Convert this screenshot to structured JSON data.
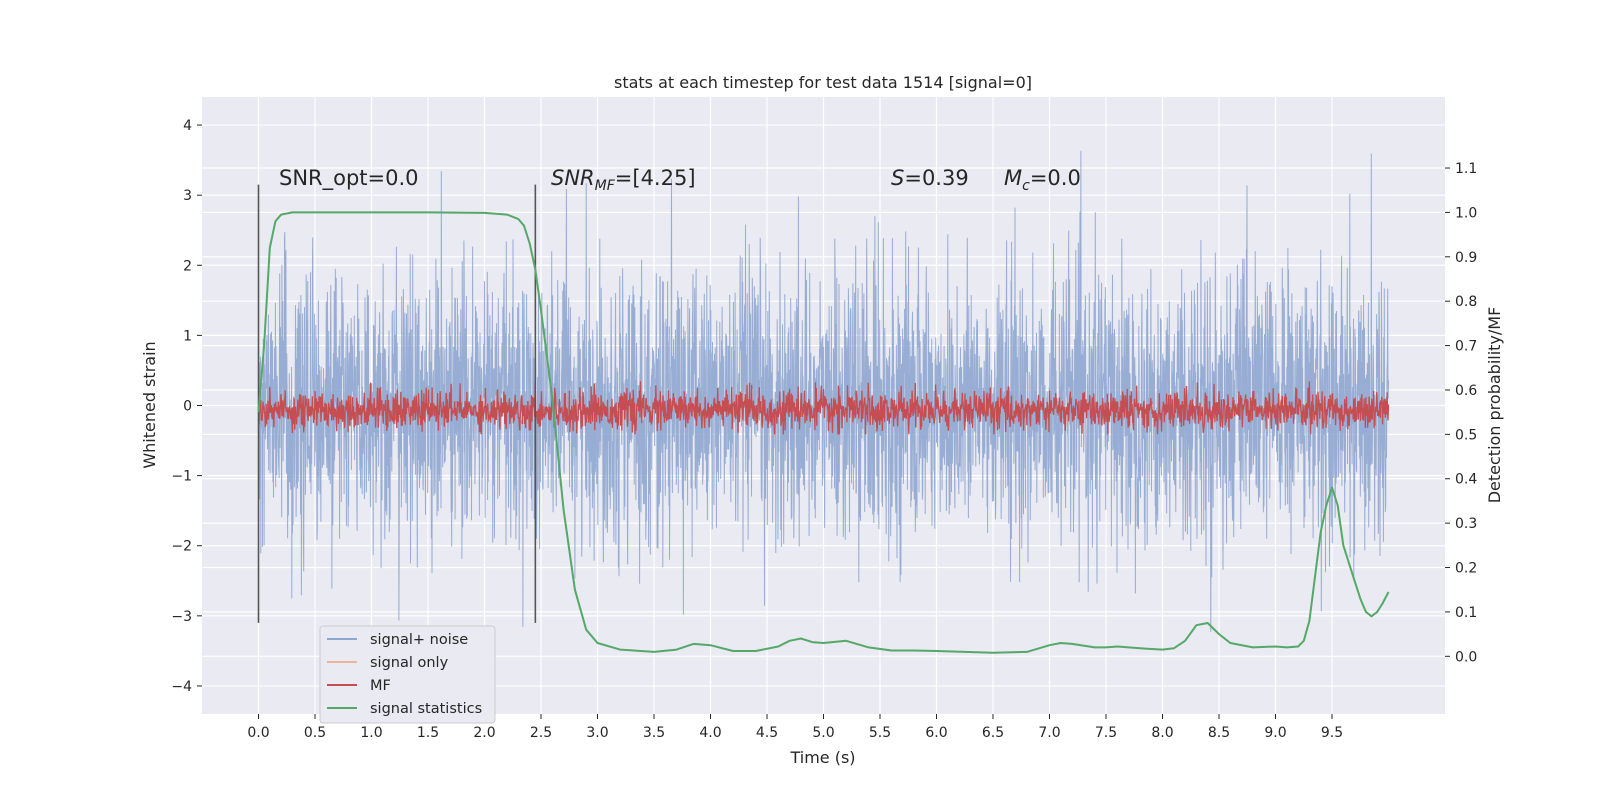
{
  "chart_data": {
    "type": "line",
    "title": "stats at each timestep for test data 1514 [signal=0]",
    "xlabel": "Time (s)",
    "ylabel_left": "Whitened strain",
    "ylabel_right": "Detection probability/MF",
    "xlim": [
      -0.5,
      10.5
    ],
    "ylim_left": [
      -4.4,
      4.4
    ],
    "ylim_right": [
      -0.13,
      1.26
    ],
    "x_ticks": [
      "0.0",
      "0.5",
      "1.0",
      "1.5",
      "2.0",
      "2.5",
      "3.0",
      "3.5",
      "4.0",
      "4.5",
      "5.0",
      "5.5",
      "6.0",
      "6.5",
      "7.0",
      "7.5",
      "8.0",
      "8.5",
      "9.0",
      "9.5"
    ],
    "y_left_ticks": [
      "4",
      "3",
      "2",
      "1",
      "0",
      "−1",
      "−2",
      "−3",
      "−4"
    ],
    "y_right_ticks": [
      "1.1",
      "1.0",
      "0.9",
      "0.8",
      "0.7",
      "0.6",
      "0.5",
      "0.4",
      "0.3",
      "0.2",
      "0.1",
      "0.0"
    ],
    "grid": true,
    "legend_position": "bottom-left",
    "annotations": {
      "snr_opt": "SNR_opt=0.0",
      "snr_mf_main": "SNR",
      "snr_mf_sub": "MF",
      "snr_mf_rest": "=[4.25]",
      "s_main": "S",
      "s_rest": "=0.39",
      "mc_main": "M",
      "mc_sub": "c",
      "mc_rest": "=0.0"
    },
    "vlines_x": [
      0.0,
      2.45
    ],
    "series": [
      {
        "name": "signal+ noise",
        "color": "#8fa6d0",
        "axis": "left",
        "description": "noise trace roughly within -3.5 to 4, duration 0 to 10 s"
      },
      {
        "name": "signal only",
        "color": "#eab49d",
        "axis": "left"
      },
      {
        "name": "MF",
        "color": "#c44e52",
        "axis": "right",
        "description": "matched filter between ~0.5 and ~0.62"
      },
      {
        "name": "signal statistics",
        "color": "#55a868",
        "axis": "right",
        "x": [
          0.0,
          0.05,
          0.1,
          0.15,
          0.2,
          0.3,
          0.5,
          1.0,
          1.5,
          2.0,
          2.2,
          2.3,
          2.35,
          2.4,
          2.45,
          2.5,
          2.55,
          2.6,
          2.7,
          2.8,
          2.9,
          3.0,
          3.2,
          3.5,
          3.7,
          3.85,
          4.0,
          4.2,
          4.4,
          4.6,
          4.7,
          4.8,
          4.9,
          5.0,
          5.2,
          5.4,
          5.6,
          5.8,
          6.0,
          6.5,
          6.8,
          7.0,
          7.1,
          7.2,
          7.4,
          7.5,
          7.6,
          7.8,
          8.0,
          8.1,
          8.2,
          8.3,
          8.4,
          8.5,
          8.6,
          8.8,
          9.0,
          9.1,
          9.2,
          9.25,
          9.3,
          9.4,
          9.45,
          9.5,
          9.55,
          9.6,
          9.7,
          9.75,
          9.8,
          9.85,
          9.9,
          9.95,
          10.0
        ],
        "y": [
          0.55,
          0.7,
          0.92,
          0.98,
          0.995,
          1.0,
          1.0,
          1.0,
          1.0,
          0.999,
          0.995,
          0.985,
          0.97,
          0.93,
          0.87,
          0.78,
          0.68,
          0.58,
          0.33,
          0.15,
          0.06,
          0.03,
          0.015,
          0.01,
          0.015,
          0.028,
          0.025,
          0.012,
          0.012,
          0.022,
          0.035,
          0.04,
          0.032,
          0.03,
          0.035,
          0.02,
          0.013,
          0.013,
          0.012,
          0.008,
          0.01,
          0.025,
          0.03,
          0.028,
          0.02,
          0.02,
          0.022,
          0.018,
          0.015,
          0.018,
          0.035,
          0.07,
          0.075,
          0.05,
          0.03,
          0.02,
          0.022,
          0.02,
          0.022,
          0.035,
          0.08,
          0.28,
          0.34,
          0.38,
          0.34,
          0.25,
          0.17,
          0.13,
          0.1,
          0.09,
          0.1,
          0.12,
          0.145
        ]
      }
    ]
  }
}
